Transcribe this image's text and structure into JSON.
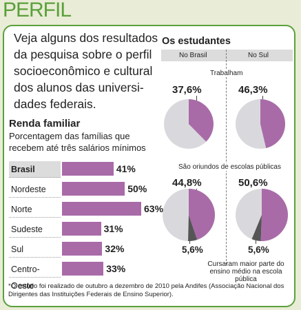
{
  "header": {
    "title": "PERFIL"
  },
  "intro": "Veja alguns dos resultados da pesquisa sobre o perfil socioeconômico e cultural dos alunos das universi-dades federais.",
  "renda": {
    "title": "Renda familiar",
    "subtitle": "Porcentagem das famílias que recebem até três salários mínimos"
  },
  "estudantes": {
    "title": "Os estudantes",
    "col_brasil": "No Brasil",
    "col_sul": "No Sul",
    "label_trabalham": "Trabalham",
    "label_escolas": "São oriundos de escolas públicas",
    "label_cursaram": "Cursaram maior parte do ensino médio na escola pública",
    "trab_brasil": "37,6%",
    "trab_sul": "46,3%",
    "esc_brasil": "44,8%",
    "esc_sul": "50,6%",
    "cur_brasil": "5,6%",
    "cur_sul": "5,6%"
  },
  "footnote": "*O estudo foi realizado de outubro a dezembro de 2010 pela Andifes (Associação Nacional dos Dirigentes das Instituições Federais de Ensino Superior).",
  "colors": {
    "accent": "#5aa03c",
    "purple": "#a96ba8",
    "pie_gray": "#d9d9dd",
    "dark": "#555555"
  },
  "chart_data": [
    {
      "type": "bar",
      "title": "Renda familiar",
      "categories": [
        "Brasil",
        "Nordeste",
        "Norte",
        "Sudeste",
        "Sul",
        "Centro-Oeste"
      ],
      "values": [
        41,
        50,
        63,
        31,
        32,
        33
      ],
      "value_labels": [
        "41%",
        "50%",
        "63%",
        "31%",
        "32%",
        "33%"
      ]
    },
    {
      "type": "pie",
      "title": "Trabalham",
      "series": [
        {
          "name": "No Brasil",
          "values": [
            37.6
          ]
        },
        {
          "name": "No Sul",
          "values": [
            46.3
          ]
        }
      ]
    },
    {
      "type": "pie",
      "title": "São oriundos de escolas públicas",
      "series": [
        {
          "name": "No Brasil",
          "values": [
            44.8,
            5.6
          ]
        },
        {
          "name": "No Sul",
          "values": [
            50.6,
            5.6
          ]
        }
      ]
    }
  ]
}
